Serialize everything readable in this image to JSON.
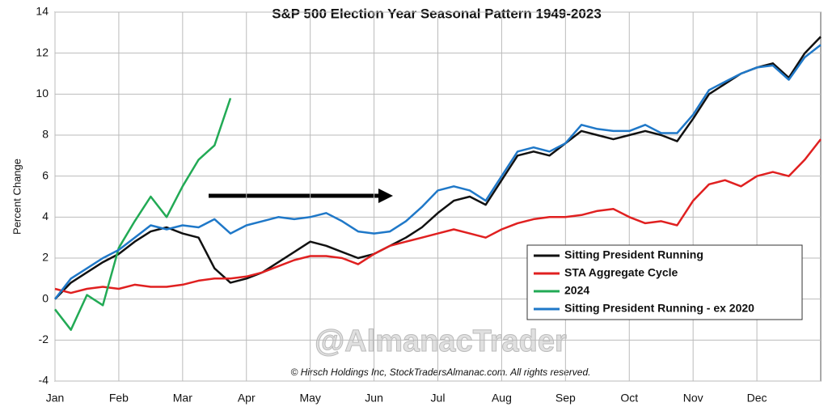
{
  "chart_data": {
    "type": "line",
    "title": "S&P 500 Election Year Seasonal Pattern 1949-2023",
    "y_label": "Percent Change",
    "watermark": "@AlmanacTrader",
    "copyright": "© Hirsch Holdings Inc, StockTradersAlmanac.com. All rights reserved.",
    "categories": [
      "Jan",
      null,
      null,
      null,
      "Feb",
      null,
      null,
      null,
      "Mar",
      null,
      null,
      null,
      "Apr",
      null,
      null,
      null,
      "May",
      null,
      null,
      null,
      "Jun",
      null,
      null,
      null,
      "Jul",
      null,
      null,
      null,
      "Aug",
      null,
      null,
      null,
      "Sep",
      null,
      null,
      null,
      "Oct",
      null,
      null,
      null,
      "Nov",
      null,
      null,
      null,
      "Dec",
      null,
      null,
      null,
      null
    ],
    "series": [
      {
        "name": "Sitting President Running",
        "color": "#111111",
        "values": [
          0,
          0.8,
          1.3,
          1.8,
          2.2,
          2.8,
          3.3,
          3.5,
          3.2,
          3.0,
          1.5,
          0.8,
          1.0,
          1.3,
          1.8,
          2.3,
          2.8,
          2.6,
          2.3,
          2.0,
          2.2,
          2.6,
          3.0,
          3.5,
          4.2,
          4.8,
          5.0,
          4.6,
          5.8,
          7.0,
          7.2,
          7.0,
          7.6,
          8.2,
          8.0,
          7.8,
          8.0,
          8.2,
          8.0,
          7.7,
          8.8,
          10.0,
          10.5,
          11.0,
          11.3,
          11.5,
          10.8,
          12.0,
          12.8
        ]
      },
      {
        "name": "STA Aggregate Cycle",
        "color": "#e02020",
        "values": [
          0.5,
          0.3,
          0.5,
          0.6,
          0.5,
          0.7,
          0.6,
          0.6,
          0.7,
          0.9,
          1.0,
          1.0,
          1.1,
          1.3,
          1.6,
          1.9,
          2.1,
          2.1,
          2.0,
          1.7,
          2.2,
          2.6,
          2.8,
          3.0,
          3.2,
          3.4,
          3.2,
          3.0,
          3.4,
          3.7,
          3.9,
          4.0,
          4.0,
          4.1,
          4.3,
          4.4,
          4.0,
          3.7,
          3.8,
          3.6,
          4.8,
          5.6,
          5.8,
          5.5,
          6.0,
          6.2,
          6.0,
          6.8,
          7.8
        ]
      },
      {
        "name": "2024",
        "color": "#22aa55",
        "values": [
          -0.5,
          -1.5,
          0.2,
          -0.3,
          2.5,
          3.8,
          5.0,
          4.0,
          5.5,
          6.8,
          7.5,
          9.8,
          null,
          null,
          null,
          null,
          null,
          null,
          null,
          null,
          null,
          null,
          null,
          null,
          null,
          null,
          null,
          null,
          null,
          null,
          null,
          null,
          null,
          null,
          null,
          null,
          null,
          null,
          null,
          null,
          null,
          null,
          null,
          null,
          null,
          null,
          null,
          null,
          null
        ]
      },
      {
        "name": "Sitting President Running - ex 2020",
        "color": "#1f78c8",
        "values": [
          0,
          1.0,
          1.5,
          2.0,
          2.4,
          3.0,
          3.6,
          3.4,
          3.6,
          3.5,
          3.9,
          3.2,
          3.6,
          3.8,
          4.0,
          3.9,
          4.0,
          4.2,
          3.8,
          3.3,
          3.2,
          3.3,
          3.8,
          4.5,
          5.3,
          5.5,
          5.3,
          4.8,
          6.0,
          7.2,
          7.4,
          7.2,
          7.6,
          8.5,
          8.3,
          8.2,
          8.2,
          8.5,
          8.1,
          8.1,
          9.0,
          10.2,
          10.6,
          11.0,
          11.3,
          11.4,
          10.7,
          11.8,
          12.4
        ]
      }
    ],
    "ylim": [
      -4,
      14
    ],
    "yticks": [
      -4,
      -2,
      0,
      2,
      4,
      6,
      8,
      10,
      12,
      14
    ],
    "grid": true
  }
}
